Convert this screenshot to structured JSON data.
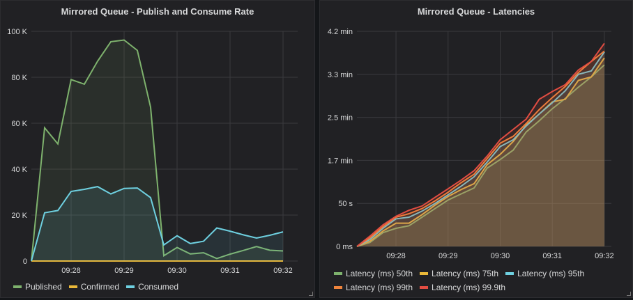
{
  "chart_data": [
    {
      "type": "area",
      "title": "Mirrored Queue - Publish and Consume Rate",
      "x": [
        "09:27:15",
        "09:27:30",
        "09:27:45",
        "09:28:00",
        "09:28:15",
        "09:28:30",
        "09:28:45",
        "09:29:00",
        "09:29:15",
        "09:29:30",
        "09:29:45",
        "09:30:00",
        "09:30:15",
        "09:30:30",
        "09:30:45",
        "09:31:00",
        "09:31:15",
        "09:31:30",
        "09:31:45",
        "09:32:00"
      ],
      "x_ticks": [
        "09:28",
        "09:29",
        "09:30",
        "09:31",
        "09:32"
      ],
      "y_ticks": [
        "0",
        "20 K",
        "40 K",
        "60 K",
        "80 K",
        "100 K"
      ],
      "ylim": [
        0,
        100000
      ],
      "grid": true,
      "legend": "bottom",
      "series": [
        {
          "name": "Published",
          "color": "#7eb26d",
          "values": [
            0,
            58000,
            51000,
            79000,
            77000,
            87000,
            95500,
            96200,
            91700,
            67000,
            2300,
            5900,
            3100,
            3600,
            1100,
            3000,
            4600,
            6300,
            4700,
            4400
          ]
        },
        {
          "name": "Confirmed",
          "color": "#eab839",
          "values": [
            0,
            0,
            0,
            0,
            0,
            0,
            0,
            0,
            0,
            0,
            0,
            0,
            0,
            0,
            0,
            0,
            0,
            0,
            0,
            0
          ]
        },
        {
          "name": "Consumed",
          "color": "#6ed0e0",
          "values": [
            0,
            21000,
            22000,
            30300,
            31200,
            32400,
            29200,
            31600,
            31800,
            27600,
            7000,
            11000,
            7600,
            8600,
            14400,
            13000,
            11400,
            10000,
            11200,
            12700
          ]
        }
      ]
    },
    {
      "type": "area",
      "title": "Mirrored Queue - Latencies",
      "x": [
        "09:27:15",
        "09:27:30",
        "09:27:45",
        "09:28:00",
        "09:28:15",
        "09:28:30",
        "09:28:45",
        "09:29:00",
        "09:29:15",
        "09:29:30",
        "09:29:45",
        "09:30:00",
        "09:30:15",
        "09:30:30",
        "09:30:45",
        "09:31:00",
        "09:31:15",
        "09:31:30",
        "09:31:45",
        "09:32:00"
      ],
      "x_ticks": [
        "09:28",
        "09:29",
        "09:30",
        "09:31",
        "09:32"
      ],
      "y_ticks": [
        "0 ms",
        "50 s",
        "1.7 min",
        "2.5 min",
        "3.3 min",
        "4.2 min"
      ],
      "y_unit": "seconds",
      "ylim": [
        0,
        250
      ],
      "grid": true,
      "legend": "bottom",
      "series": [
        {
          "name": "Latency (ms) 50th",
          "color": "#7eb26d",
          "values": [
            0,
            4.6,
            16,
            21,
            24,
            34,
            44,
            54,
            61,
            68,
            91,
            101,
            112,
            133,
            146,
            160,
            172,
            185,
            197,
            211
          ]
        },
        {
          "name": "Latency (ms) 75th",
          "color": "#eab839",
          "values": [
            0,
            6,
            18,
            27,
            27,
            37,
            48,
            58,
            66,
            73,
            95,
            107,
            122,
            141,
            154,
            168,
            171,
            193,
            197,
            219
          ]
        },
        {
          "name": "Latency (ms) 95th",
          "color": "#6ed0e0",
          "values": [
            0,
            8,
            21,
            32,
            34,
            41,
            50,
            60,
            70,
            81,
            98,
            116,
            124,
            140,
            154,
            167,
            181,
            200,
            204,
            226
          ]
        },
        {
          "name": "Latency (ms) 99th",
          "color": "#ef843c",
          "values": [
            0,
            10,
            23,
            34,
            38,
            44,
            53,
            63,
            74,
            84,
            102,
            120,
            128,
            143,
            159,
            173,
            186,
            202,
            215,
            227
          ]
        },
        {
          "name": "Latency (ms) 99.9th",
          "color": "#e24d42",
          "values": [
            0,
            12,
            25,
            35,
            42,
            47,
            57,
            67,
            77,
            88,
            105,
            124,
            136,
            148,
            171,
            180,
            188,
            205,
            215,
            236
          ]
        }
      ]
    }
  ]
}
